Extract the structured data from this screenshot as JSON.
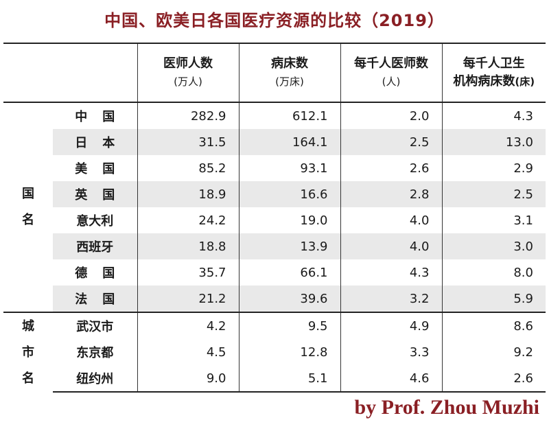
{
  "title": "中国、欧美日各国医疗资源的比较（2019）",
  "headers": [
    {
      "line1": "医师人数",
      "line2": "(万人)",
      "unit": ""
    },
    {
      "line1": "病床数",
      "line2": "(万床)",
      "unit": ""
    },
    {
      "line1": "每千人医师数",
      "line2": "(人)",
      "unit": ""
    },
    {
      "line1": "每千人卫生",
      "line2": "机构病床数",
      "unit": "(床)"
    }
  ],
  "groups": {
    "country": [
      "国",
      "名"
    ],
    "city": [
      "城",
      "市",
      "名"
    ]
  },
  "rows": [
    {
      "name": "中国",
      "values": [
        "282.9",
        "612.1",
        "2.0",
        "4.3"
      ]
    },
    {
      "name": "日本",
      "values": [
        "31.5",
        "164.1",
        "2.5",
        "13.0"
      ]
    },
    {
      "name": "美国",
      "values": [
        "85.2",
        "93.1",
        "2.6",
        "2.9"
      ]
    },
    {
      "name": "英国",
      "values": [
        "18.9",
        "16.6",
        "2.8",
        "2.5"
      ]
    },
    {
      "name": "意大利",
      "values": [
        "24.2",
        "19.0",
        "4.0",
        "3.1"
      ]
    },
    {
      "name": "西班牙",
      "values": [
        "18.8",
        "13.9",
        "4.0",
        "3.0"
      ]
    },
    {
      "name": "德国",
      "values": [
        "35.7",
        "66.1",
        "4.3",
        "8.0"
      ]
    },
    {
      "name": "法国",
      "values": [
        "21.2",
        "39.6",
        "3.2",
        "5.9"
      ]
    },
    {
      "name": "武汉市",
      "values": [
        "4.2",
        "9.5",
        "4.9",
        "8.6"
      ]
    },
    {
      "name": "东京都",
      "values": [
        "4.5",
        "12.8",
        "3.3",
        "9.2"
      ]
    },
    {
      "name": "纽约州",
      "values": [
        "9.0",
        "5.1",
        "4.6",
        "2.6"
      ]
    }
  ],
  "credit": "by Prof. Zhou Muzhi",
  "colors": {
    "accent": "#8a1f24",
    "shade": "#e9e9e9"
  }
}
